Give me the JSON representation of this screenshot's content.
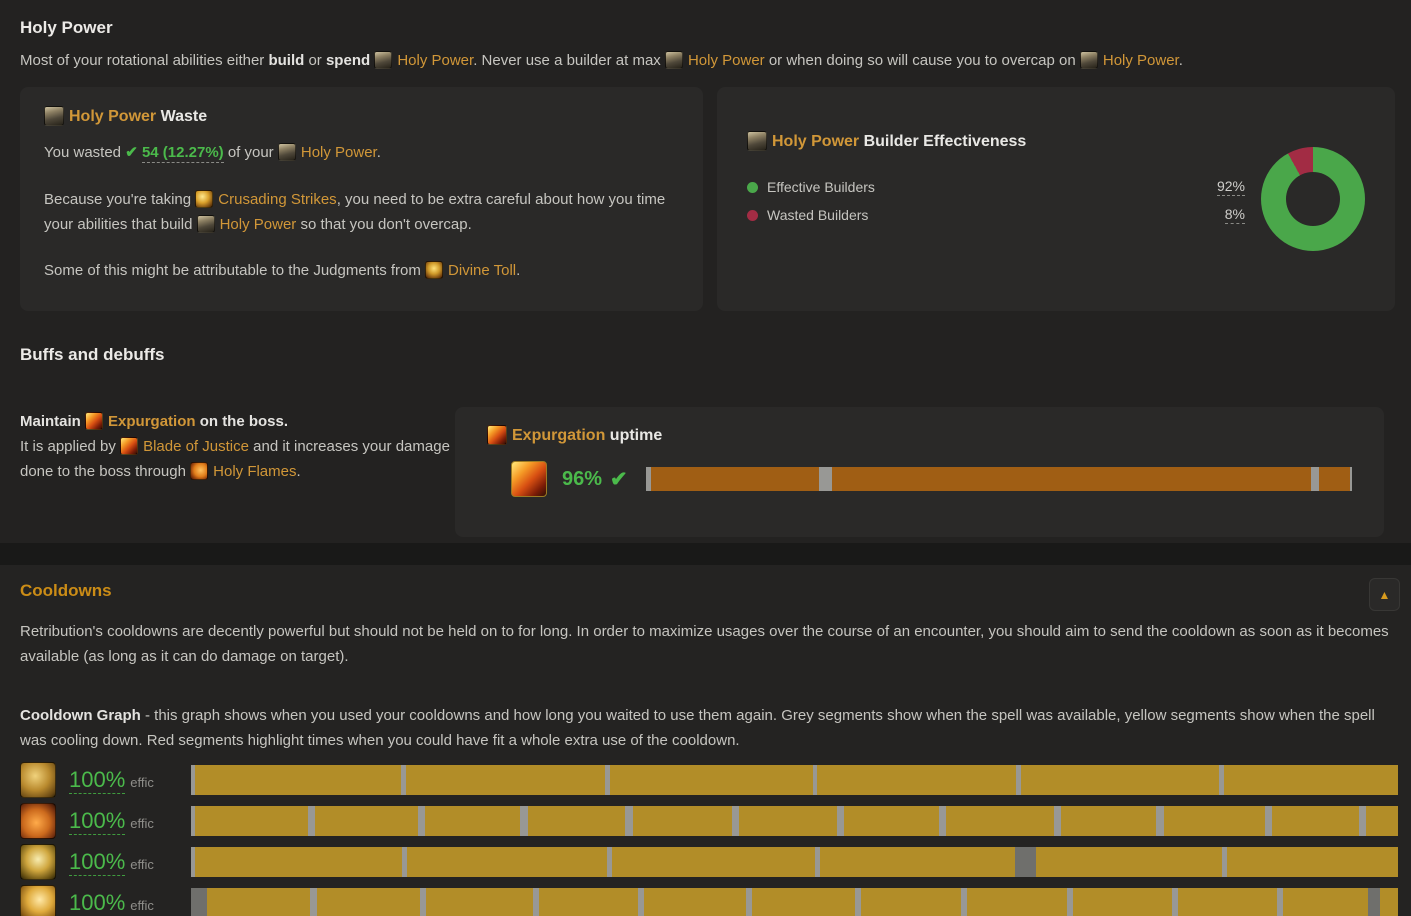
{
  "colors": {
    "yellow": "#b28d28",
    "orange": "#a05e14",
    "gray": "#989895",
    "gray_dark": "#6f6f6c",
    "green": "#4bba4b",
    "spell_link": "#d19738",
    "gold_heading": "#cb8c16",
    "donut_green": "#4aa74a",
    "donut_red": "#a22c44"
  },
  "chart_data": {
    "type": "pie",
    "title": "Holy Power Builder Effectiveness",
    "categories": [
      "Effective Builders",
      "Wasted Builders"
    ],
    "values": [
      92,
      8
    ],
    "colors": [
      "#4aa74a",
      "#a22c44"
    ],
    "legend_position": "left"
  },
  "holy_power": {
    "title": "Holy Power",
    "intro": [
      {
        "t": "x",
        "v": "Most of your rotational abilities either "
      },
      {
        "t": "b",
        "v": "build"
      },
      {
        "t": "x",
        "v": " or "
      },
      {
        "t": "b",
        "v": "spend"
      },
      {
        "t": "x",
        "v": " "
      },
      {
        "t": "s",
        "v": "Holy Power",
        "i": "holy-power"
      },
      {
        "t": "x",
        "v": ". Never use a builder at max "
      },
      {
        "t": "s",
        "v": "Holy Power",
        "i": "holy-power"
      },
      {
        "t": "x",
        "v": " or when doing so will cause you to overcap on "
      },
      {
        "t": "s",
        "v": "Holy Power",
        "i": "holy-power"
      },
      {
        "t": "x",
        "v": "."
      }
    ],
    "waste": {
      "title_spell": "Holy Power",
      "title_rest": " Waste",
      "p1": [
        {
          "t": "x",
          "v": "You wasted "
        },
        {
          "t": "c"
        },
        {
          "t": "x",
          "v": " "
        },
        {
          "t": "g",
          "v": "54 (12.27%)"
        },
        {
          "t": "x",
          "v": " of your "
        },
        {
          "t": "s",
          "v": "Holy Power",
          "i": "holy-power"
        },
        {
          "t": "x",
          "v": "."
        }
      ],
      "p2": [
        {
          "t": "x",
          "v": "Because you're taking "
        },
        {
          "t": "s",
          "v": "Crusading Strikes",
          "i": "crusading-strikes"
        },
        {
          "t": "x",
          "v": ", you need to be extra careful about how you time your abilities that build "
        },
        {
          "t": "s",
          "v": "Holy Power",
          "i": "holy-power"
        },
        {
          "t": "x",
          "v": " so that you don't overcap."
        }
      ],
      "p3": [
        {
          "t": "x",
          "v": "Some of this might be attributable to the Judgments from "
        },
        {
          "t": "s",
          "v": "Divine Toll",
          "i": "divine-toll"
        },
        {
          "t": "x",
          "v": "."
        }
      ]
    },
    "builder": {
      "title_spell": "Holy Power",
      "title_rest": " Builder Effectiveness",
      "legend": [
        {
          "label": "Effective Builders",
          "value": "92%",
          "color": "#4aa74a"
        },
        {
          "label": "Wasted Builders",
          "value": "8%",
          "color": "#a22c44"
        }
      ],
      "donut": {
        "green_pct": 92,
        "red_pct": 8
      }
    }
  },
  "buffs": {
    "title": "Buffs and debuffs",
    "note1": [
      {
        "t": "b",
        "v": "Maintain "
      },
      {
        "t": "s",
        "v": "Expurgation",
        "i": "expurgation",
        "b": true
      },
      {
        "t": "b",
        "v": " on the boss."
      }
    ],
    "note2": [
      {
        "t": "x",
        "v": "It is applied by "
      },
      {
        "t": "s",
        "v": "Blade of Justice",
        "i": "blade-of-justice"
      },
      {
        "t": "x",
        "v": " and it increases your damage done to the boss through "
      },
      {
        "t": "s",
        "v": "Holy Flames",
        "i": "holy-flames"
      },
      {
        "t": "x",
        "v": "."
      }
    ],
    "uptime": {
      "title_spell": "Expurgation",
      "title_rest": " uptime",
      "value": "96%",
      "segments": [
        {
          "c": "g",
          "w": 0.8
        },
        {
          "c": "o",
          "w": 23.8
        },
        {
          "c": "g",
          "w": 1.8
        },
        {
          "c": "o",
          "w": 67.8
        },
        {
          "c": "g",
          "w": 1.2
        },
        {
          "c": "o",
          "w": 4.3
        },
        {
          "c": "g",
          "w": 0.3
        }
      ]
    }
  },
  "cooldowns": {
    "title": "Cooldowns",
    "collapse_icon": "▲",
    "p1": "Retribution's cooldowns are decently powerful but should not be held on to for long. In order to maximize usages over the course of an encounter, you should aim to send the cooldown as soon as it becomes available (as long as it can do damage on target).",
    "graph_title": "Cooldown Graph",
    "graph_desc": " - this graph shows when you used your cooldowns and how long you waited to use them again. Grey segments show when the spell was available, yellow segments show when the spell was cooling down. Red segments highlight times when you could have fit a whole extra use of the cooldown.",
    "rows": [
      {
        "icon": "gold-hammer",
        "eff": "100%",
        "unit": "effic",
        "segments": [
          {
            "c": "g",
            "w": 0.3
          },
          {
            "c": "y",
            "w": 17.1
          },
          {
            "c": "g",
            "w": 0.4
          },
          {
            "c": "y",
            "w": 16.5
          },
          {
            "c": "g",
            "w": 0.4
          },
          {
            "c": "y",
            "w": 16.8
          },
          {
            "c": "g",
            "w": 0.4
          },
          {
            "c": "y",
            "w": 16.5
          },
          {
            "c": "g",
            "w": 0.4
          },
          {
            "c": "y",
            "w": 16.4
          },
          {
            "c": "g",
            "w": 0.4
          },
          {
            "c": "y",
            "w": 14.4
          }
        ]
      },
      {
        "icon": "fiery-ashes",
        "eff": "100%",
        "unit": "effic",
        "segments": [
          {
            "c": "g",
            "w": 0.3
          },
          {
            "c": "y",
            "w": 9.4
          },
          {
            "c": "g",
            "w": 0.6
          },
          {
            "c": "y",
            "w": 8.5
          },
          {
            "c": "g",
            "w": 0.6
          },
          {
            "c": "y",
            "w": 7.9
          },
          {
            "c": "g",
            "w": 0.6
          },
          {
            "c": "y",
            "w": 8.1
          },
          {
            "c": "g",
            "w": 0.6
          },
          {
            "c": "y",
            "w": 8.2
          },
          {
            "c": "g",
            "w": 0.6
          },
          {
            "c": "y",
            "w": 8.1
          },
          {
            "c": "g",
            "w": 0.6
          },
          {
            "c": "y",
            "w": 7.9
          },
          {
            "c": "g",
            "w": 0.6
          },
          {
            "c": "y",
            "w": 8.9
          },
          {
            "c": "g",
            "w": 0.6
          },
          {
            "c": "y",
            "w": 7.9
          },
          {
            "c": "g",
            "w": 0.6
          },
          {
            "c": "y",
            "w": 8.4
          },
          {
            "c": "g",
            "w": 0.6
          },
          {
            "c": "y",
            "w": 7.2
          },
          {
            "c": "g",
            "w": 0.6
          },
          {
            "c": "y",
            "w": 2.6
          }
        ]
      },
      {
        "icon": "golden-bell",
        "eff": "100%",
        "unit": "effic",
        "segments": [
          {
            "c": "g",
            "w": 0.3
          },
          {
            "c": "y",
            "w": 17.2
          },
          {
            "c": "g",
            "w": 0.4
          },
          {
            "c": "y",
            "w": 16.6
          },
          {
            "c": "g",
            "w": 0.4
          },
          {
            "c": "y",
            "w": 16.8
          },
          {
            "c": "g",
            "w": 0.4
          },
          {
            "c": "y",
            "w": 16.2
          },
          {
            "c": "G",
            "w": 1.7
          },
          {
            "c": "y",
            "w": 15.4
          },
          {
            "c": "g",
            "w": 0.4
          },
          {
            "c": "y",
            "w": 14.2
          }
        ]
      },
      {
        "icon": "golden-wings",
        "eff": "100%",
        "unit": "effic",
        "segments": [
          {
            "c": "G",
            "w": 1.3
          },
          {
            "c": "y",
            "w": 8.6
          },
          {
            "c": "g",
            "w": 0.5
          },
          {
            "c": "y",
            "w": 8.6
          },
          {
            "c": "g",
            "w": 0.5
          },
          {
            "c": "y",
            "w": 8.8
          },
          {
            "c": "g",
            "w": 0.5
          },
          {
            "c": "y",
            "w": 8.2
          },
          {
            "c": "g",
            "w": 0.5
          },
          {
            "c": "y",
            "w": 8.5
          },
          {
            "c": "g",
            "w": 0.5
          },
          {
            "c": "y",
            "w": 8.5
          },
          {
            "c": "g",
            "w": 0.5
          },
          {
            "c": "y",
            "w": 8.3
          },
          {
            "c": "g",
            "w": 0.5
          },
          {
            "c": "y",
            "w": 8.3
          },
          {
            "c": "g",
            "w": 0.5
          },
          {
            "c": "y",
            "w": 8.2
          },
          {
            "c": "g",
            "w": 0.5
          },
          {
            "c": "y",
            "w": 8.2
          },
          {
            "c": "g",
            "w": 0.5
          },
          {
            "c": "y",
            "w": 7.0
          },
          {
            "c": "G",
            "w": 1.0
          },
          {
            "c": "y",
            "w": 1.5
          }
        ]
      }
    ]
  }
}
